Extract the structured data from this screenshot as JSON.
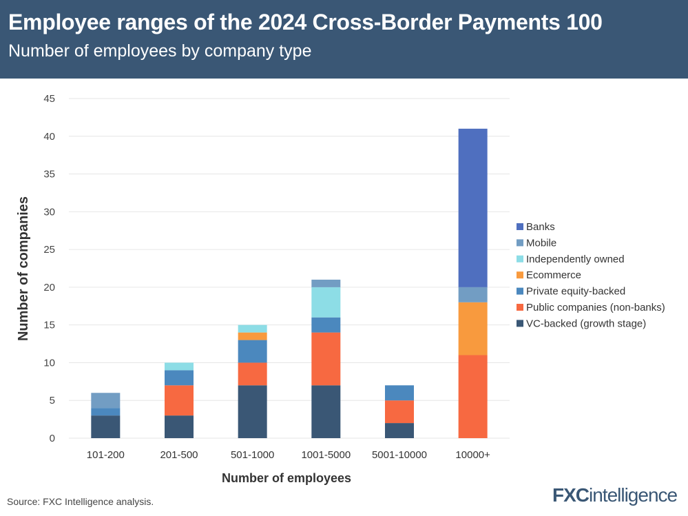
{
  "header": {
    "title": "Employee ranges of the 2024 Cross-Border Payments 100",
    "subtitle": "Number of employees by company type"
  },
  "footer": {
    "source": "Source: FXC Intelligence analysis.",
    "logo": "FXCintelligence"
  },
  "chart_data": {
    "type": "bar",
    "stacked": true,
    "xlabel": "Number of employees",
    "ylabel": "Number of companies",
    "ylim": [
      0,
      45
    ],
    "yticks": [
      0,
      5,
      10,
      15,
      20,
      25,
      30,
      35,
      40,
      45
    ],
    "grid": true,
    "legend": "right",
    "categories": [
      "101-200",
      "201-500",
      "501-1000",
      "1001-5000",
      "5001-10000",
      "10000+"
    ],
    "series": [
      {
        "name": "VC-backed (growth stage)",
        "color": "#3a5775",
        "values": [
          3,
          3,
          7,
          7,
          2,
          0
        ]
      },
      {
        "name": "Public companies (non-banks)",
        "color": "#f76941",
        "values": [
          0,
          4,
          3,
          7,
          3,
          11
        ]
      },
      {
        "name": "Private equity-backed",
        "color": "#4b88be",
        "values": [
          1,
          2,
          3,
          2,
          2,
          0
        ]
      },
      {
        "name": "Ecommerce",
        "color": "#f89a3e",
        "values": [
          0,
          0,
          1,
          0,
          0,
          7
        ]
      },
      {
        "name": "Independently owned",
        "color": "#8ddde6",
        "values": [
          0,
          1,
          1,
          4,
          0,
          0
        ]
      },
      {
        "name": "Mobile",
        "color": "#729dc3",
        "values": [
          2,
          0,
          0,
          1,
          0,
          2
        ]
      },
      {
        "name": "Banks",
        "color": "#4f6fbf",
        "values": [
          0,
          0,
          0,
          0,
          0,
          21
        ]
      }
    ]
  }
}
